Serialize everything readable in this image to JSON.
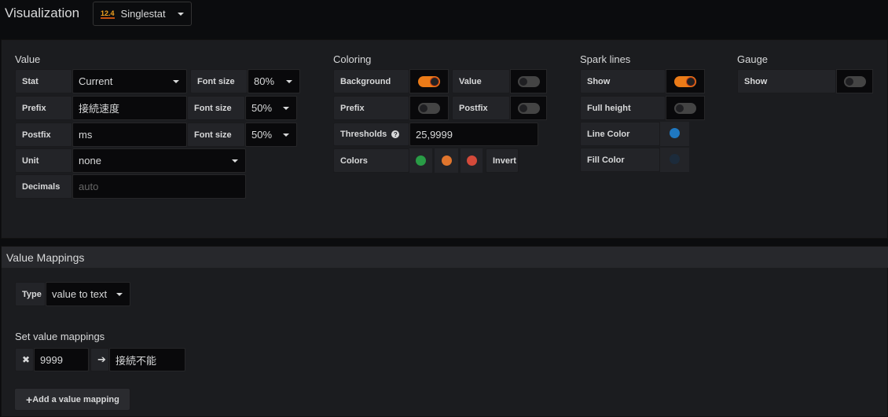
{
  "header": {
    "title": "Visualization",
    "viz_icon_text": "12.4",
    "viz_select": "Singlestat"
  },
  "value": {
    "title": "Value",
    "stat_label": "Stat",
    "stat_value": "Current",
    "font_size_label": "Font size",
    "stat_font": "80%",
    "prefix_label": "Prefix",
    "prefix_value": "接続速度",
    "prefix_font": "50%",
    "postfix_label": "Postfix",
    "postfix_value": "ms",
    "postfix_font": "50%",
    "unit_label": "Unit",
    "unit_value": "none",
    "decimals_label": "Decimals",
    "decimals_placeholder": "auto"
  },
  "coloring": {
    "title": "Coloring",
    "background_label": "Background",
    "background_on": true,
    "value_label": "Value",
    "value_on": false,
    "prefix_label": "Prefix",
    "prefix_on": false,
    "postfix_label": "Postfix",
    "postfix_on": false,
    "thresholds_label": "Thresholds",
    "thresholds_value": "25,9999",
    "colors_label": "Colors",
    "colors": [
      "#299c46",
      "#e0752d",
      "#d44a3a"
    ],
    "invert_label": "Invert"
  },
  "sparklines": {
    "title": "Spark lines",
    "show_label": "Show",
    "show_on": true,
    "full_height_label": "Full height",
    "full_height_on": false,
    "line_color_label": "Line Color",
    "line_color": "#1f78c1",
    "fill_color_label": "Fill Color",
    "fill_color": "#1c2b3b"
  },
  "gauge": {
    "title": "Gauge",
    "show_label": "Show",
    "show_on": false
  },
  "mappings": {
    "title": "Value Mappings",
    "type_label": "Type",
    "type_value": "value to text",
    "set_title": "Set value mappings",
    "rows": [
      {
        "value": "9999",
        "text": "接続不能"
      }
    ],
    "add_button": "Add a value mapping"
  }
}
